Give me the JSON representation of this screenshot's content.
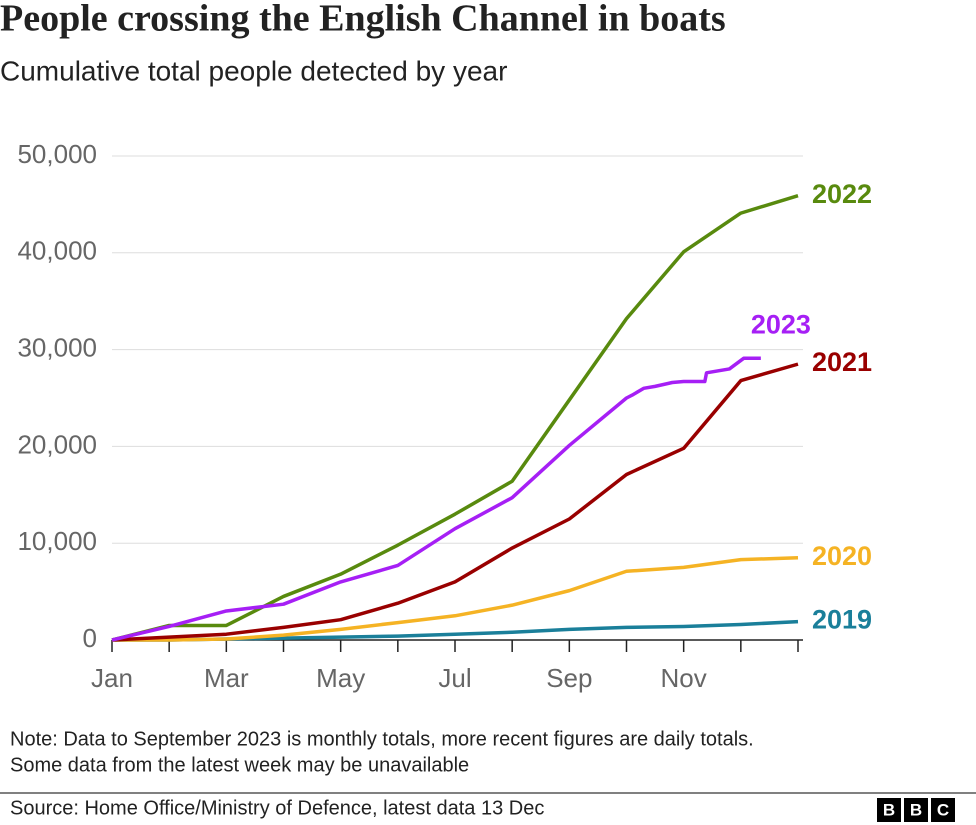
{
  "chart_data": {
    "type": "line",
    "title": "People crossing the English Channel in boats",
    "subtitle": "Cumulative total people detected by year",
    "ylim": [
      0,
      50000
    ],
    "yticks": [
      0,
      {
        "value": 10000,
        "label": "10,000"
      },
      {
        "value": 20000,
        "label": "20,000"
      },
      {
        "value": 30000,
        "label": "30,000"
      },
      {
        "value": 40000,
        "label": "40,000"
      },
      {
        "value": 50000,
        "label": "50,000"
      }
    ],
    "xlim": [
      0,
      12
    ],
    "xticks": [
      {
        "value": 0,
        "label": "Jan"
      },
      {
        "value": 1,
        "label": null
      },
      {
        "value": 2,
        "label": "Mar"
      },
      {
        "value": 3,
        "label": null
      },
      {
        "value": 4,
        "label": "May"
      },
      {
        "value": 5,
        "label": null
      },
      {
        "value": 6,
        "label": "Jul"
      },
      {
        "value": 7,
        "label": null
      },
      {
        "value": 8,
        "label": "Sep"
      },
      {
        "value": 9,
        "label": null
      },
      {
        "value": 10,
        "label": "Nov"
      },
      {
        "value": 11,
        "label": null
      },
      {
        "value": 12,
        "label": null
      }
    ],
    "grid": true,
    "series": [
      {
        "name": "2019",
        "color": "#1a7f9a",
        "x": [
          0,
          1,
          2,
          3,
          4,
          5,
          6,
          7,
          8,
          9,
          10,
          11,
          12
        ],
        "values": [
          0,
          0,
          100,
          200,
          300,
          400,
          600,
          800,
          1100,
          1300,
          1400,
          1600,
          1900
        ]
      },
      {
        "name": "2020",
        "color": "#f5b324",
        "x": [
          0,
          1,
          2,
          3,
          4,
          5,
          6,
          7,
          8,
          9,
          10,
          11,
          12
        ],
        "values": [
          0,
          0,
          100,
          500,
          1100,
          1800,
          2500,
          3600,
          5100,
          7100,
          7500,
          8300,
          8500
        ]
      },
      {
        "name": "2021",
        "color": "#990000",
        "x": [
          0,
          1,
          2,
          3,
          4,
          5,
          6,
          7,
          8,
          9,
          10,
          11,
          12
        ],
        "values": [
          0,
          300,
          600,
          1300,
          2100,
          3800,
          6000,
          9500,
          12500,
          17100,
          19800,
          26800,
          28500
        ]
      },
      {
        "name": "2022",
        "color": "#588a0e",
        "x": [
          0,
          1,
          2,
          3,
          4,
          5,
          6,
          7,
          8,
          9,
          10,
          11,
          12
        ],
        "values": [
          0,
          1500,
          1500,
          4500,
          6800,
          9800,
          13000,
          16400,
          24800,
          33200,
          40100,
          44100,
          45900
        ]
      },
      {
        "name": "2023",
        "color": "#a61ff5",
        "x": [
          0,
          1,
          2,
          3,
          4,
          5,
          6,
          7,
          8,
          9,
          9.1,
          9.3,
          9.5,
          9.8,
          10,
          10.37,
          10.4,
          10.8,
          11.05,
          11.35
        ],
        "values": [
          0,
          1400,
          3000,
          3700,
          6000,
          7700,
          11500,
          14700,
          20100,
          25000,
          25300,
          26000,
          26200,
          26600,
          26700,
          26700,
          27600,
          28000,
          29100,
          29100
        ]
      }
    ],
    "note": [
      "Note: Data to September 2023 is monthly totals, more recent figures are daily totals.",
      "Some data from the latest week may be unavailable"
    ],
    "source": "Source: Home Office/Ministry of Defence, latest data 13 Dec",
    "logo": [
      "B",
      "B",
      "C"
    ]
  }
}
